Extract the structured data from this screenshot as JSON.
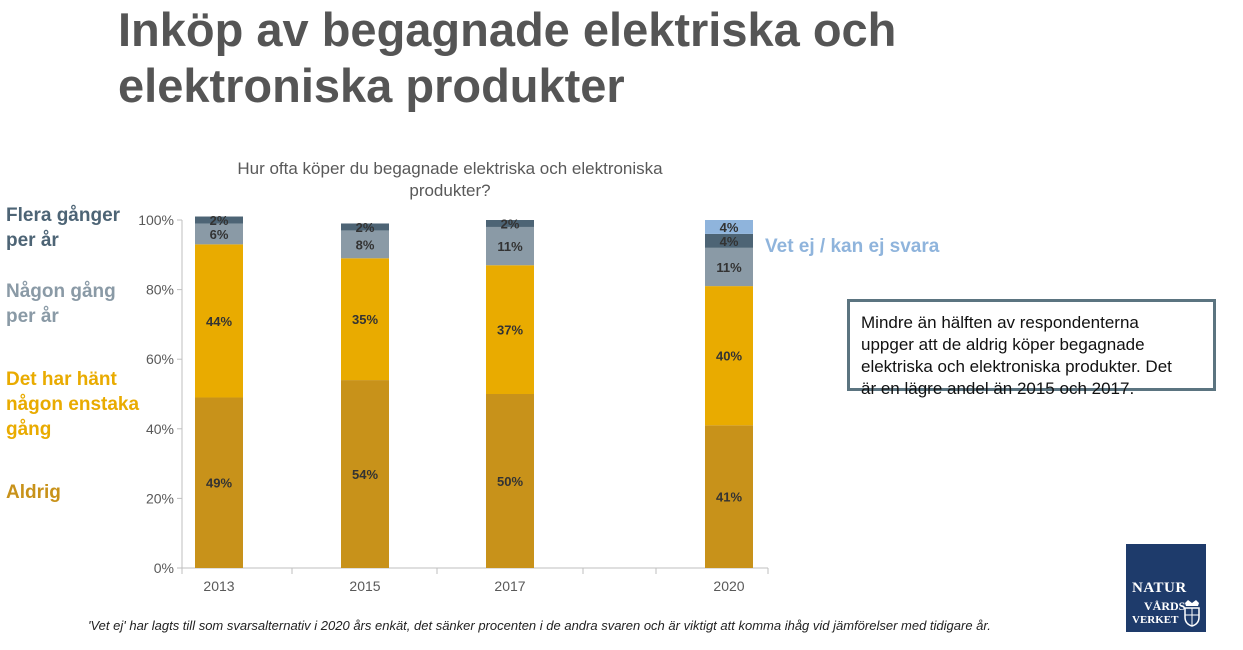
{
  "slide": {
    "title_line1": "Inköp av begagnade elektriska och",
    "title_line2": "elektroniska produkter"
  },
  "legend": [
    {
      "line1": "Flera gånger",
      "line2": "per år",
      "line3": "",
      "color": "#4d6475"
    },
    {
      "line1": "Någon gång",
      "line2": "per år",
      "line3": "",
      "color": "#8a9aa6"
    },
    {
      "line1": "Det har hänt",
      "line2": "någon enstaka",
      "line3": "gång",
      "color": "#e9ab00"
    },
    {
      "line1": "Aldrig",
      "line2": "",
      "line3": "",
      "color": "#c8921a"
    }
  ],
  "vet_ej_label": "Vet ej / kan ej svara",
  "callout": {
    "line1": "Mindre än hälften av respondenterna",
    "line2": "uppger att de aldrig köper begagnade",
    "line3": "elektriska och elektroniska produkter. Det",
    "line4": "är en lägre andel än 2015 och 2017."
  },
  "footnote": "'Vet ej' har lagts till som svarsalternativ i 2020 års enkät, det sänker procenten i de andra svaren och är viktigt att komma ihåg vid jämförelser med tidigare år.",
  "logo": {
    "line1": "NATUR",
    "line2": "VÅRDS",
    "line3": "VERKET"
  },
  "chart_data": {
    "type": "bar",
    "stacked": true,
    "title": "Hur ofta köper du begagnade elektriska och elektroniska produkter?",
    "title_line1": "Hur ofta köper du begagnade elektriska och elektroniska",
    "title_line2": "produkter?",
    "categories": [
      "2013",
      "2015",
      "2017",
      "2020"
    ],
    "ylim": [
      0,
      100
    ],
    "yticks": [
      "0%",
      "20%",
      "40%",
      "60%",
      "80%",
      "100%"
    ],
    "series": [
      {
        "name": "Aldrig",
        "values": [
          49,
          54,
          50,
          41
        ],
        "labels": [
          "49%",
          "54%",
          "50%",
          "41%"
        ],
        "color": "#c8921a"
      },
      {
        "name": "Det har hänt någon enstaka gång",
        "values": [
          44,
          35,
          37,
          40
        ],
        "labels": [
          "44%",
          "35%",
          "37%",
          "40%"
        ],
        "color": "#e9ab00"
      },
      {
        "name": "Någon gång per år",
        "values": [
          6,
          8,
          11,
          11
        ],
        "labels": [
          "6%",
          "8%",
          "11%",
          "11%"
        ],
        "color": "#8a9aa6"
      },
      {
        "name": "Flera gånger per år",
        "values": [
          2,
          2,
          2,
          4
        ],
        "labels": [
          "2%",
          "2%",
          "2%",
          "4%"
        ],
        "color": "#4d6475"
      },
      {
        "name": "Vet ej / kan ej svara",
        "values": [
          0,
          0,
          0,
          4
        ],
        "labels": [
          "",
          "",
          "",
          "4%"
        ],
        "color": "#8fb4dc"
      }
    ]
  }
}
